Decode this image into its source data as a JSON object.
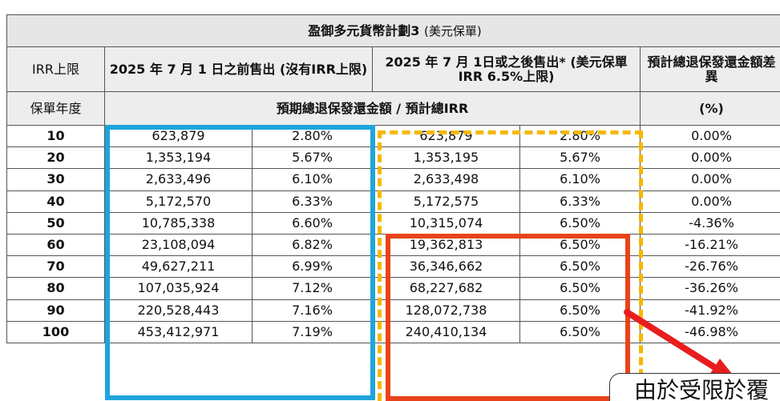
{
  "title": {
    "main": "盈御多元貨幣計劃3",
    "sub": "(美元保單)"
  },
  "header": {
    "irr_cap_label": "IRR上限",
    "col_before": "2025 年 7 月 1 日之前售出 (沒有IRR上限)",
    "col_after": "2025 年 7 月 1日或之後售出* (美元保單IRR 6.5%上限)",
    "col_diff": "預計總退保發還金額差異",
    "policy_year_label": "保單年度",
    "projected_label": "預期總退保發還金額 / 預計總IRR",
    "pct_label": "(%)"
  },
  "rows": [
    {
      "year": "10",
      "before_amt": "623,879",
      "before_irr": "2.80%",
      "after_amt": "623,879",
      "after_irr": "2.80%",
      "diff": "0.00%"
    },
    {
      "year": "20",
      "before_amt": "1,353,194",
      "before_irr": "5.67%",
      "after_amt": "1,353,195",
      "after_irr": "5.67%",
      "diff": "0.00%"
    },
    {
      "year": "30",
      "before_amt": "2,633,496",
      "before_irr": "6.10%",
      "after_amt": "2,633,498",
      "after_irr": "6.10%",
      "diff": "0.00%"
    },
    {
      "year": "40",
      "before_amt": "5,172,570",
      "before_irr": "6.33%",
      "after_amt": "5,172,575",
      "after_irr": "6.33%",
      "diff": "0.00%"
    },
    {
      "year": "50",
      "before_amt": "10,785,338",
      "before_irr": "6.60%",
      "after_amt": "10,315,074",
      "after_irr": "6.50%",
      "diff": "-4.36%"
    },
    {
      "year": "60",
      "before_amt": "23,108,094",
      "before_irr": "6.82%",
      "after_amt": "19,362,813",
      "after_irr": "6.50%",
      "diff": "-16.21%"
    },
    {
      "year": "70",
      "before_amt": "49,627,211",
      "before_irr": "6.99%",
      "after_amt": "36,346,662",
      "after_irr": "6.50%",
      "diff": "-26.76%"
    },
    {
      "year": "80",
      "before_amt": "107,035,924",
      "before_irr": "7.12%",
      "after_amt": "68,227,682",
      "after_irr": "6.50%",
      "diff": "-36.26%"
    },
    {
      "year": "90",
      "before_amt": "220,528,443",
      "before_irr": "7.16%",
      "after_amt": "128,072,738",
      "after_irr": "6.50%",
      "diff": "-41.92%"
    },
    {
      "year": "100",
      "before_amt": "453,412,971",
      "before_irr": "7.19%",
      "after_amt": "240,410,134",
      "after_irr": "6.50%",
      "diff": "-46.98%"
    }
  ],
  "callout_text": "由於受限於覆",
  "colors": {
    "blue_box": "#1ea5dc",
    "orange_box": "#e8431b",
    "yellow_dash": "#f5b800",
    "arrow": "#e81e1e",
    "header_bg": "#e6e6e6"
  }
}
